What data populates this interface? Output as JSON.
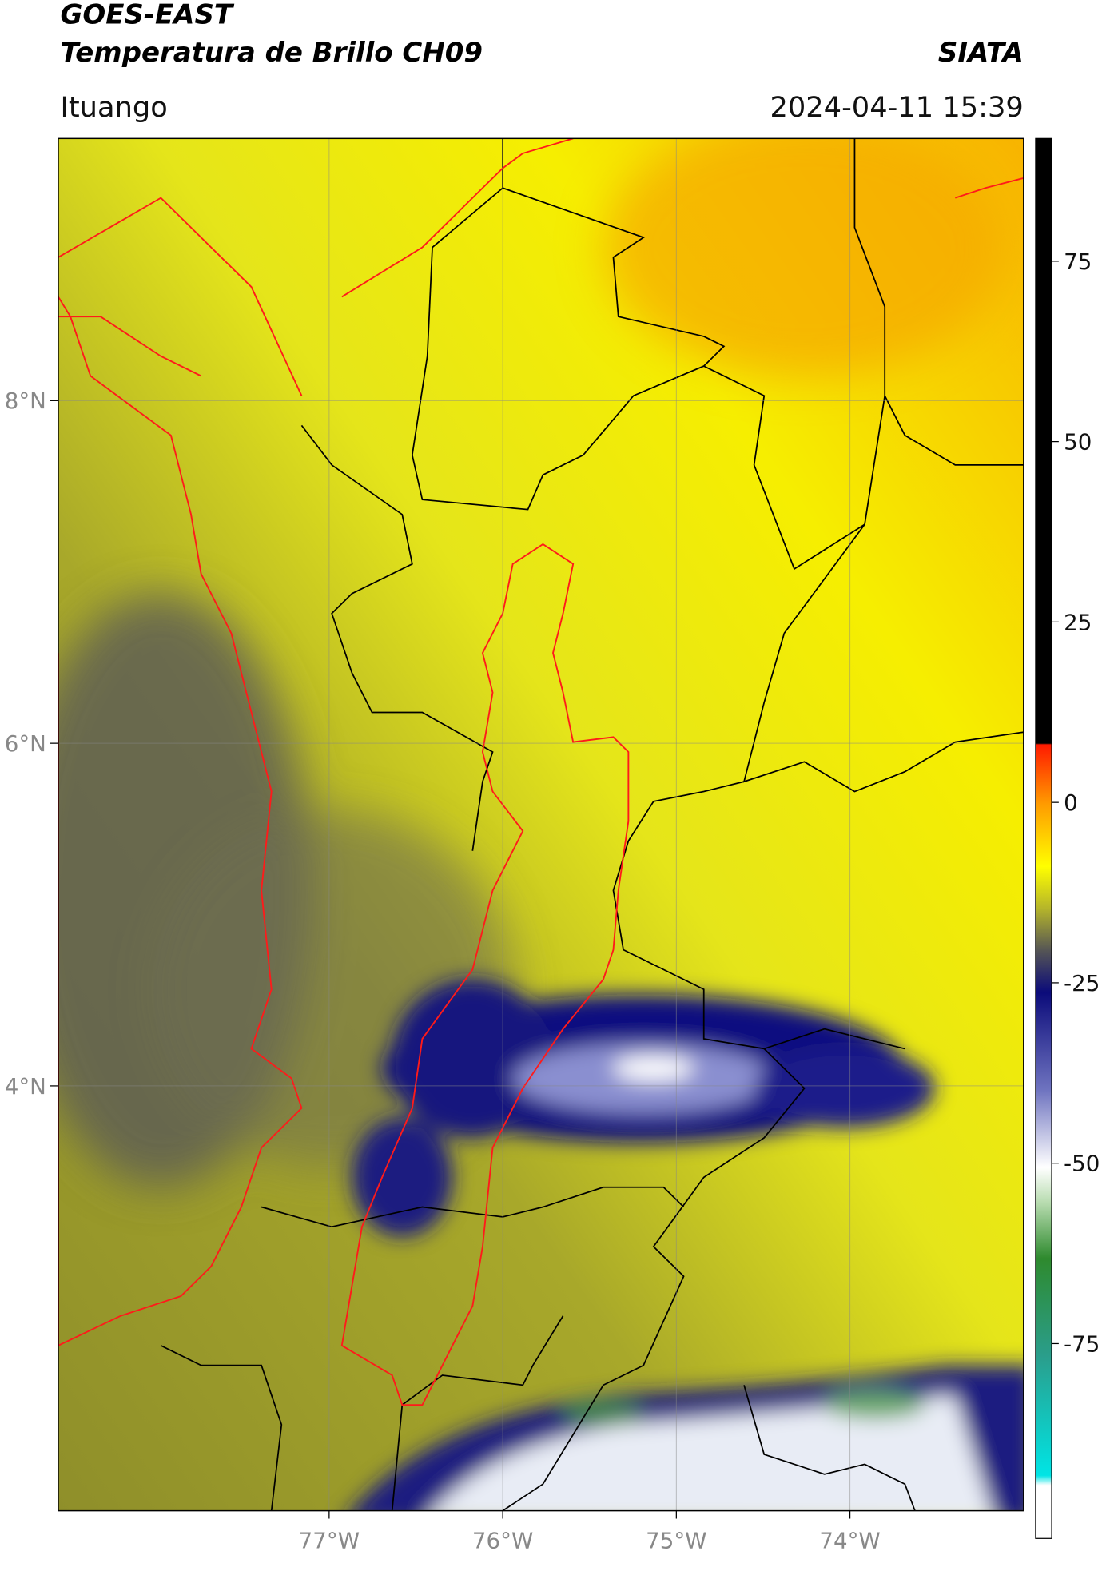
{
  "header": {
    "title_line1": "GOES-EAST",
    "title_line2": "Temperatura de Brillo CH09",
    "agency": "SIATA",
    "location": "Ituango",
    "timestamp": "2024-04-11 15:39"
  },
  "map": {
    "xlim": [
      -78.56,
      -73.0
    ],
    "ylim": [
      1.52,
      9.53
    ],
    "xticks": [
      {
        "value": -77,
        "label": "77°W"
      },
      {
        "value": -76,
        "label": "76°W"
      },
      {
        "value": -75,
        "label": "75°W"
      },
      {
        "value": -74,
        "label": "74°W"
      }
    ],
    "yticks": [
      {
        "value": 8,
        "label": "8°N"
      },
      {
        "value": 6,
        "label": "6°N"
      },
      {
        "value": 4,
        "label": "4°N"
      }
    ],
    "grid": true
  },
  "colorbar": {
    "vlim": [
      -102,
      92
    ],
    "ticks": [
      75,
      50,
      25,
      0,
      -25,
      -50,
      -75
    ]
  }
}
